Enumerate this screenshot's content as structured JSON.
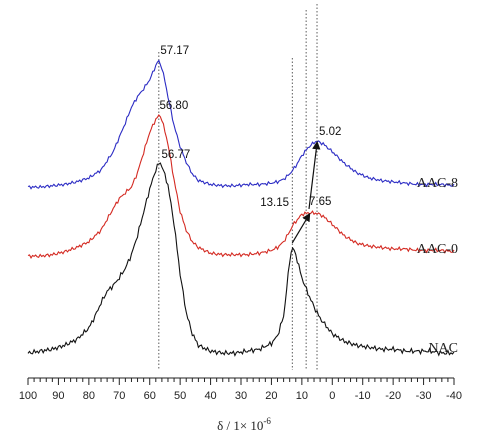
{
  "chart_data": {
    "type": "line",
    "title": "",
    "xlabel": "δ / 1× 10",
    "xlabel_exp": "-6",
    "x_reversed": true,
    "xlim": [
      100,
      -40
    ],
    "x_ticks": [
      100,
      90,
      80,
      70,
      60,
      50,
      40,
      30,
      20,
      10,
      0,
      -10,
      -20,
      -30,
      -40
    ],
    "y_axis_shown": false,
    "grid": false,
    "legend": "labels at right end of each curve",
    "series": [
      {
        "name": "AAC-8",
        "color": "#2c2cc4",
        "x": [
          100,
          96,
          92,
          88,
          84,
          80,
          76,
          72,
          68,
          66,
          64,
          62,
          60,
          58.5,
          57.17,
          56,
          55,
          54,
          52,
          50,
          48,
          46,
          44,
          40,
          36,
          32,
          28,
          24,
          20,
          18,
          16,
          14,
          12,
          10,
          8,
          6,
          5,
          3,
          0,
          -4,
          -8,
          -12,
          -16,
          -20,
          -24,
          -28,
          -32,
          -36,
          -40
        ],
        "y": [
          0.03,
          0.03,
          0.04,
          0.05,
          0.07,
          0.1,
          0.16,
          0.3,
          0.52,
          0.64,
          0.72,
          0.78,
          0.85,
          0.93,
          1.0,
          0.94,
          0.84,
          0.72,
          0.5,
          0.34,
          0.22,
          0.13,
          0.08,
          0.05,
          0.04,
          0.04,
          0.05,
          0.05,
          0.06,
          0.07,
          0.09,
          0.13,
          0.19,
          0.27,
          0.33,
          0.37,
          0.38,
          0.36,
          0.3,
          0.21,
          0.14,
          0.1,
          0.08,
          0.07,
          0.06,
          0.05,
          0.05,
          0.05,
          0.04
        ]
      },
      {
        "name": "AAC-0",
        "color": "#d42a22",
        "x": [
          100,
          96,
          92,
          88,
          84,
          80,
          76,
          72,
          70,
          68,
          66,
          64,
          62,
          60,
          58,
          56.8,
          56,
          54,
          52,
          50,
          48,
          46,
          44,
          40,
          36,
          32,
          28,
          24,
          20,
          18,
          16,
          14,
          13.15,
          12,
          10,
          8,
          7.65,
          6,
          4,
          2,
          0,
          -2,
          -4,
          -8,
          -12,
          -16,
          -20,
          -24,
          -28,
          -32,
          -36,
          -40
        ],
        "y": [
          0.02,
          0.02,
          0.03,
          0.05,
          0.08,
          0.12,
          0.2,
          0.35,
          0.42,
          0.46,
          0.5,
          0.6,
          0.74,
          0.88,
          0.97,
          1.0,
          0.97,
          0.8,
          0.55,
          0.33,
          0.2,
          0.12,
          0.08,
          0.04,
          0.03,
          0.03,
          0.03,
          0.04,
          0.06,
          0.08,
          0.12,
          0.19,
          0.23,
          0.26,
          0.31,
          0.32,
          0.32,
          0.32,
          0.31,
          0.28,
          0.24,
          0.2,
          0.16,
          0.11,
          0.09,
          0.08,
          0.07,
          0.07,
          0.06,
          0.06,
          0.06,
          0.05
        ]
      },
      {
        "name": "NAC",
        "color": "#111111",
        "x": [
          100,
          96,
          92,
          88,
          84,
          80,
          78,
          76,
          74,
          72,
          70,
          68,
          66,
          64,
          62,
          60,
          58,
          56.77,
          56,
          54,
          52,
          50,
          48,
          46,
          44,
          40,
          36,
          32,
          28,
          24,
          20,
          18,
          16,
          15,
          14,
          13.15,
          12,
          11,
          10,
          8,
          6,
          4,
          2,
          0,
          -4,
          -8,
          -12,
          -16,
          -20,
          -24,
          -28,
          -32,
          -36,
          -40
        ],
        "y": [
          0.01,
          0.02,
          0.03,
          0.05,
          0.08,
          0.14,
          0.2,
          0.27,
          0.33,
          0.36,
          0.4,
          0.45,
          0.52,
          0.62,
          0.74,
          0.86,
          0.96,
          1.0,
          0.98,
          0.88,
          0.68,
          0.42,
          0.22,
          0.11,
          0.05,
          0.02,
          0.01,
          0.01,
          0.02,
          0.03,
          0.06,
          0.1,
          0.2,
          0.34,
          0.49,
          0.56,
          0.52,
          0.46,
          0.4,
          0.32,
          0.25,
          0.19,
          0.15,
          0.11,
          0.07,
          0.05,
          0.04,
          0.03,
          0.03,
          0.02,
          0.02,
          0.02,
          0.01,
          0.01
        ]
      }
    ],
    "peak_labels": [
      {
        "text": "57.17",
        "series": "AAC-8",
        "x": 57.17
      },
      {
        "text": "56.80",
        "series": "AAC-0",
        "x": 56.8
      },
      {
        "text": "56.77",
        "series": "NAC",
        "x": 56.77
      },
      {
        "text": "13.15",
        "series": "AAC-0",
        "x": 13.15
      },
      {
        "text": "7.65",
        "series": "AAC-0",
        "x": 7.65
      },
      {
        "text": "5.02",
        "series": "AAC-8",
        "x": 5.02
      }
    ],
    "reference_lines_x": [
      57,
      13.15,
      8.6,
      5.02
    ],
    "arrows": [
      {
        "from_series": "NAC",
        "from_x": 13.15,
        "to_series": "AAC-0",
        "to_x": 7.65
      },
      {
        "from_series": "AAC-0",
        "from_x": 7.65,
        "to_series": "AAC-8",
        "to_x": 5.02
      }
    ]
  }
}
